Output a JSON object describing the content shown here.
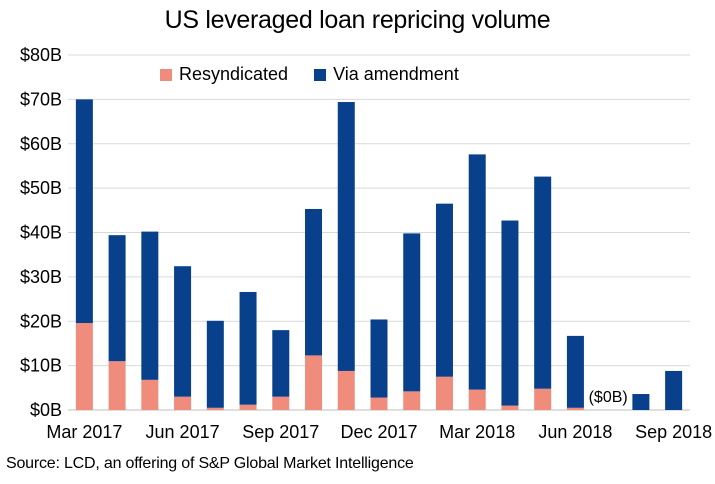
{
  "chart_data": {
    "type": "bar",
    "stacked": true,
    "title": "US leveraged loan repricing volume",
    "source": "Source: LCD, an offering of S&P Global Market Intelligence",
    "categories": [
      "Mar 2017",
      "Apr 2017",
      "May 2017",
      "Jun 2017",
      "Jul 2017",
      "Aug 2017",
      "Sep 2017",
      "Oct 2017",
      "Nov 2017",
      "Dec 2017",
      "Jan 2018",
      "Feb 2018",
      "Mar 2018",
      "Apr 2018",
      "May 2018",
      "Jun 2018",
      "Jul 2018",
      "Aug 2018",
      "Sep 2018"
    ],
    "x_tick_labels": [
      {
        "index": 0,
        "label": "Mar 2017"
      },
      {
        "index": 3,
        "label": "Jun 2017"
      },
      {
        "index": 6,
        "label": "Sep 2017"
      },
      {
        "index": 9,
        "label": "Dec 2017"
      },
      {
        "index": 12,
        "label": "Mar 2018"
      },
      {
        "index": 15,
        "label": "Jun 2018"
      },
      {
        "index": 18,
        "label": "Sep 2018"
      }
    ],
    "y_ticks": [
      "$0B",
      "$10B",
      "$20B",
      "$30B",
      "$40B",
      "$50B",
      "$60B",
      "$70B",
      "$80B"
    ],
    "ylim": [
      0,
      80
    ],
    "grid": true,
    "legend_position": "top",
    "series": [
      {
        "name": "Resyndicated",
        "color": "#F08C7C",
        "values": [
          19.6,
          11.0,
          6.8,
          3.0,
          0.5,
          1.2,
          3.0,
          12.3,
          8.8,
          2.8,
          4.2,
          7.5,
          4.6,
          1.0,
          4.8,
          0.5,
          0,
          0,
          0
        ]
      },
      {
        "name": "Via amendment",
        "color": "#08408C",
        "values": [
          50.4,
          28.4,
          33.4,
          29.4,
          19.6,
          25.4,
          15.0,
          33.0,
          60.6,
          17.6,
          35.6,
          39.0,
          53.0,
          41.7,
          47.8,
          16.2,
          0,
          3.6,
          8.8
        ]
      }
    ],
    "annotations": [
      {
        "index": 16,
        "text": "($0B)"
      }
    ]
  }
}
